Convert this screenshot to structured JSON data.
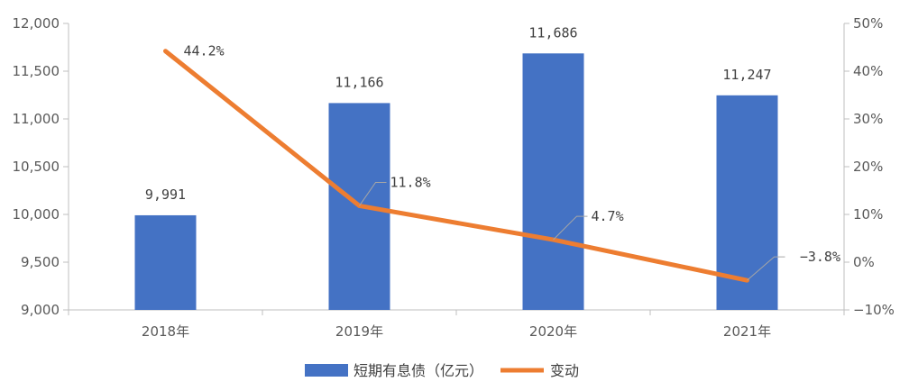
{
  "chart_data": {
    "type": "bar",
    "categories": [
      "2018年",
      "2019年",
      "2020年",
      "2021年"
    ],
    "series": [
      {
        "name": "短期有息债（亿元）",
        "type": "bar",
        "axis": "left",
        "color": "#4472C4",
        "values": [
          9991,
          11166,
          11686,
          11247
        ],
        "labels": [
          "9,991",
          "11,166",
          "11,686",
          "11,247"
        ]
      },
      {
        "name": "变动",
        "type": "line",
        "axis": "right",
        "color": "#ED7D31",
        "values": [
          44.2,
          11.8,
          4.7,
          -3.8
        ],
        "labels": [
          "44.2%",
          "11.8%",
          "4.7%",
          "−3.8%"
        ]
      }
    ],
    "y_left": {
      "min": 9000,
      "max": 12000,
      "ticks": [
        "9,000",
        "9,500",
        "10,000",
        "10,500",
        "11,000",
        "11,500",
        "12,000"
      ]
    },
    "y_right": {
      "min": -10,
      "max": 50,
      "ticks": [
        "−10%",
        "0%",
        "10%",
        "20%",
        "30%",
        "40%",
        "50%"
      ]
    },
    "legend_position": "bottom",
    "grid": false
  }
}
